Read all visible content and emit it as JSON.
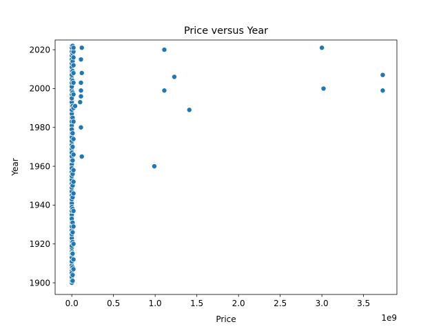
{
  "chart_data": {
    "type": "scatter",
    "title": "Price versus Year",
    "xlabel": "Price",
    "ylabel": "Year",
    "x_offset_text": "1e9",
    "x_scale": 1000000000,
    "xlim": [
      -0.2,
      3.9
    ],
    "ylim": [
      1894,
      2025
    ],
    "xticks": [
      0.0,
      0.5,
      1.0,
      1.5,
      2.0,
      2.5,
      3.0,
      3.5
    ],
    "xtick_labels": [
      "0.0",
      "0.5",
      "1.0",
      "1.5",
      "2.0",
      "2.5",
      "3.0",
      "3.5"
    ],
    "yticks": [
      1900,
      1920,
      1940,
      1960,
      1980,
      2000,
      2020
    ],
    "ytick_labels": [
      "1900",
      "1920",
      "1940",
      "1960",
      "1980",
      "2000",
      "2020"
    ],
    "grid": false,
    "legend": "none",
    "marker_color": "#1f77b4",
    "series": [
      {
        "x": [
          0.0,
          0.0,
          0.0,
          0.0,
          0.0,
          0.0,
          0.0,
          0.0,
          0.0,
          0.0,
          0.0,
          0.0,
          0.0,
          0.0,
          0.0,
          0.0,
          0.0,
          0.0,
          0.0,
          0.0,
          0.0,
          0.0,
          0.0,
          0.0,
          0.0,
          0.0,
          0.0,
          0.0,
          0.0,
          0.0,
          0.0,
          0.0,
          0.0,
          0.0,
          0.0,
          0.0,
          0.0,
          0.0,
          0.0,
          0.0,
          0.0,
          0.0,
          0.0,
          0.0,
          0.0,
          0.0,
          0.0,
          0.0,
          0.0,
          0.0,
          0.0,
          0.0,
          0.0,
          0.0,
          0.0,
          0.0,
          0.0,
          0.0,
          0.0,
          0.0,
          0.0,
          0.0,
          0.0,
          0.0,
          0.0,
          0.0,
          0.0,
          0.0,
          0.0,
          0.0,
          0.0,
          0.0,
          0.0,
          0.0,
          0.0,
          0.0,
          0.0,
          0.0,
          0.0,
          0.0,
          0.0,
          0.0,
          0.0,
          0.0,
          0.0,
          0.0,
          0.0,
          0.0,
          0.0,
          0.0,
          0.0,
          0.0,
          0.0,
          0.0,
          0.0,
          0.0,
          0.0,
          0.0,
          0.0,
          0.0,
          0.0,
          0.0,
          0.0,
          0.0,
          0.0,
          0.0,
          0.0,
          0.0,
          0.0,
          0.0,
          0.0,
          0.0,
          0.0,
          0.0,
          0.0,
          0.0,
          0.0,
          0.0,
          0.0,
          0.0,
          0.0,
          0.0,
          0.0,
          0.01,
          0.01,
          0.01,
          0.01,
          0.01,
          0.01,
          0.01,
          0.01,
          0.01,
          0.01,
          0.01,
          0.01,
          0.01,
          0.01,
          0.01,
          0.01,
          0.01,
          0.01,
          0.01,
          0.01,
          0.01,
          0.01,
          0.02,
          0.02,
          0.02,
          0.02,
          0.02,
          0.02,
          0.02,
          0.02,
          0.02,
          0.02,
          0.02,
          0.02,
          0.02,
          0.02,
          0.02,
          0.02,
          0.02,
          0.02,
          0.02,
          0.04,
          0.1,
          0.12,
          0.12,
          0.11,
          0.11,
          0.11,
          0.11,
          0.11,
          0.12,
          0.99,
          1.11,
          1.11,
          1.23,
          1.41,
          3.0,
          3.02,
          3.73,
          3.73
        ],
        "y": [
          1900,
          1902,
          1904,
          1906,
          1908,
          1910,
          1912,
          1914,
          1916,
          1918,
          1920,
          1922,
          1924,
          1926,
          1928,
          1930,
          1932,
          1934,
          1936,
          1938,
          1940,
          1942,
          1944,
          1946,
          1948,
          1950,
          1952,
          1954,
          1956,
          1958,
          1960,
          1962,
          1964,
          1966,
          1968,
          1970,
          1972,
          1974,
          1976,
          1978,
          1980,
          1982,
          1984,
          1986,
          1988,
          1990,
          1992,
          1994,
          1996,
          1998,
          2000,
          2002,
          2004,
          2006,
          2008,
          2010,
          2012,
          2014,
          2016,
          2018,
          2020,
          2022,
          1901,
          1903,
          1905,
          1909,
          1911,
          1913,
          1915,
          1919,
          1921,
          1923,
          1925,
          1927,
          1929,
          1931,
          1935,
          1937,
          1941,
          1943,
          1945,
          1947,
          1949,
          1951,
          1953,
          1955,
          1957,
          1961,
          1963,
          1965,
          1969,
          1971,
          1973,
          1975,
          1977,
          1981,
          1985,
          1987,
          1989,
          1991,
          1993,
          1995,
          1997,
          1999,
          2001,
          2003,
          2005,
          2007,
          2009,
          2011,
          2013,
          2015,
          2017,
          2019,
          2021,
          1933,
          1939,
          1959,
          1967,
          1979,
          1983,
          1995,
          2021,
          1901,
          1904,
          1908,
          1915,
          1921,
          1926,
          1931,
          1938,
          1944,
          1950,
          1956,
          1963,
          1970,
          1977,
          1985,
          1991,
          1998,
          2004,
          2009,
          2014,
          2018,
          2022,
          1907,
          1912,
          1920,
          1929,
          1937,
          1946,
          1952,
          1958,
          1966,
          1974,
          1983,
          1990,
          1997,
          2003,
          2008,
          2012,
          2016,
          2019,
          2021,
          1991,
          1993,
          2021,
          2008,
          2015,
          2003,
          1999,
          1996,
          1980,
          1965,
          1960,
          1999,
          2020,
          2006,
          1989,
          2021,
          2000,
          2007,
          1999
        ]
      }
    ]
  }
}
